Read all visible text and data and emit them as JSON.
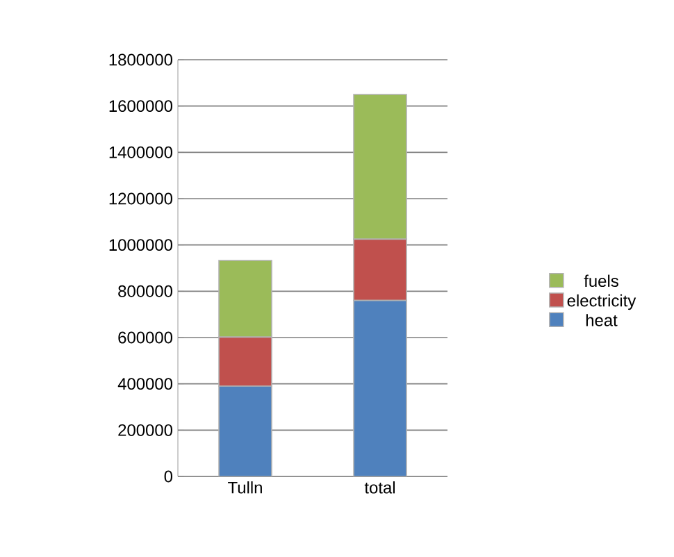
{
  "chart_data": {
    "type": "bar",
    "stacked": true,
    "categories": [
      "Tulln",
      "total"
    ],
    "series": [
      {
        "name": "heat",
        "color": "#4f81bd",
        "values": [
          390000,
          760000
        ]
      },
      {
        "name": "electricity",
        "color": "#c0504d",
        "values": [
          212000,
          265000
        ]
      },
      {
        "name": "fuels",
        "color": "#9bbb59",
        "values": [
          331000,
          625000
        ]
      }
    ],
    "ylim": [
      0,
      1800000
    ],
    "yticks": [
      0,
      200000,
      400000,
      600000,
      800000,
      1000000,
      1200000,
      1400000,
      1600000,
      1800000
    ],
    "grid": "y",
    "legend": "right"
  }
}
